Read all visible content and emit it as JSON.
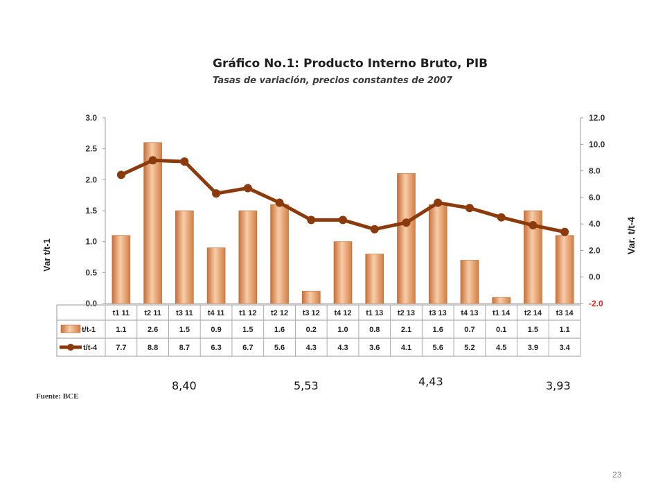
{
  "page": {
    "title": "Gráfico No.1: Producto Interno Bruto, PIB",
    "subtitle": "Tasas de variación, precios constantes de 2007",
    "source": "Fuente: BCE",
    "slide_number": "23",
    "annotations": [
      "8,40",
      "5,53",
      "4,43",
      "3,93"
    ]
  },
  "chart_data": {
    "type": "bar",
    "title": "Gráfico No.1: Producto Interno Bruto, PIB",
    "subtitle": "Tasas de variación, precios constantes de 2007",
    "categories": [
      "t1 11",
      "t2 11",
      "t3 11",
      "t4 11",
      "t1 12",
      "t2 12",
      "t3 12",
      "t4 12",
      "t1 13",
      "t2 13",
      "t3 13",
      "t4 13",
      "t1 14",
      "t2 14",
      "t3 14"
    ],
    "series": [
      {
        "name": "t/t-1",
        "type": "bar",
        "axis": "left",
        "values": [
          1.1,
          2.6,
          1.5,
          0.9,
          1.5,
          1.6,
          0.2,
          1.0,
          0.8,
          2.1,
          1.6,
          0.7,
          0.1,
          1.5,
          1.1
        ]
      },
      {
        "name": "t/t-4",
        "type": "line",
        "axis": "right",
        "values": [
          7.7,
          8.8,
          8.7,
          6.3,
          6.7,
          5.6,
          4.3,
          4.3,
          3.6,
          4.1,
          5.6,
          5.2,
          4.5,
          3.9,
          3.4
        ]
      }
    ],
    "ylabel": "Var t/t-1",
    "y2label": "Var. t/t-4",
    "ylim": [
      0,
      3
    ],
    "y2lim": [
      -2,
      12
    ],
    "yticks": [
      "0.0",
      "0.5",
      "1.0",
      "1.5",
      "2.0",
      "2.5",
      "3.0"
    ],
    "y2ticks": [
      "-2.0",
      "0.0",
      "2.0",
      "4.0",
      "6.0",
      "8.0",
      "10.0",
      "12.0"
    ],
    "grid": false,
    "legend": "data-table-below",
    "colors": {
      "bar": "#e39a62",
      "bar_light": "#f8dcc3",
      "line": "#8b3a0c",
      "negative_tick": "#e8231c"
    }
  }
}
